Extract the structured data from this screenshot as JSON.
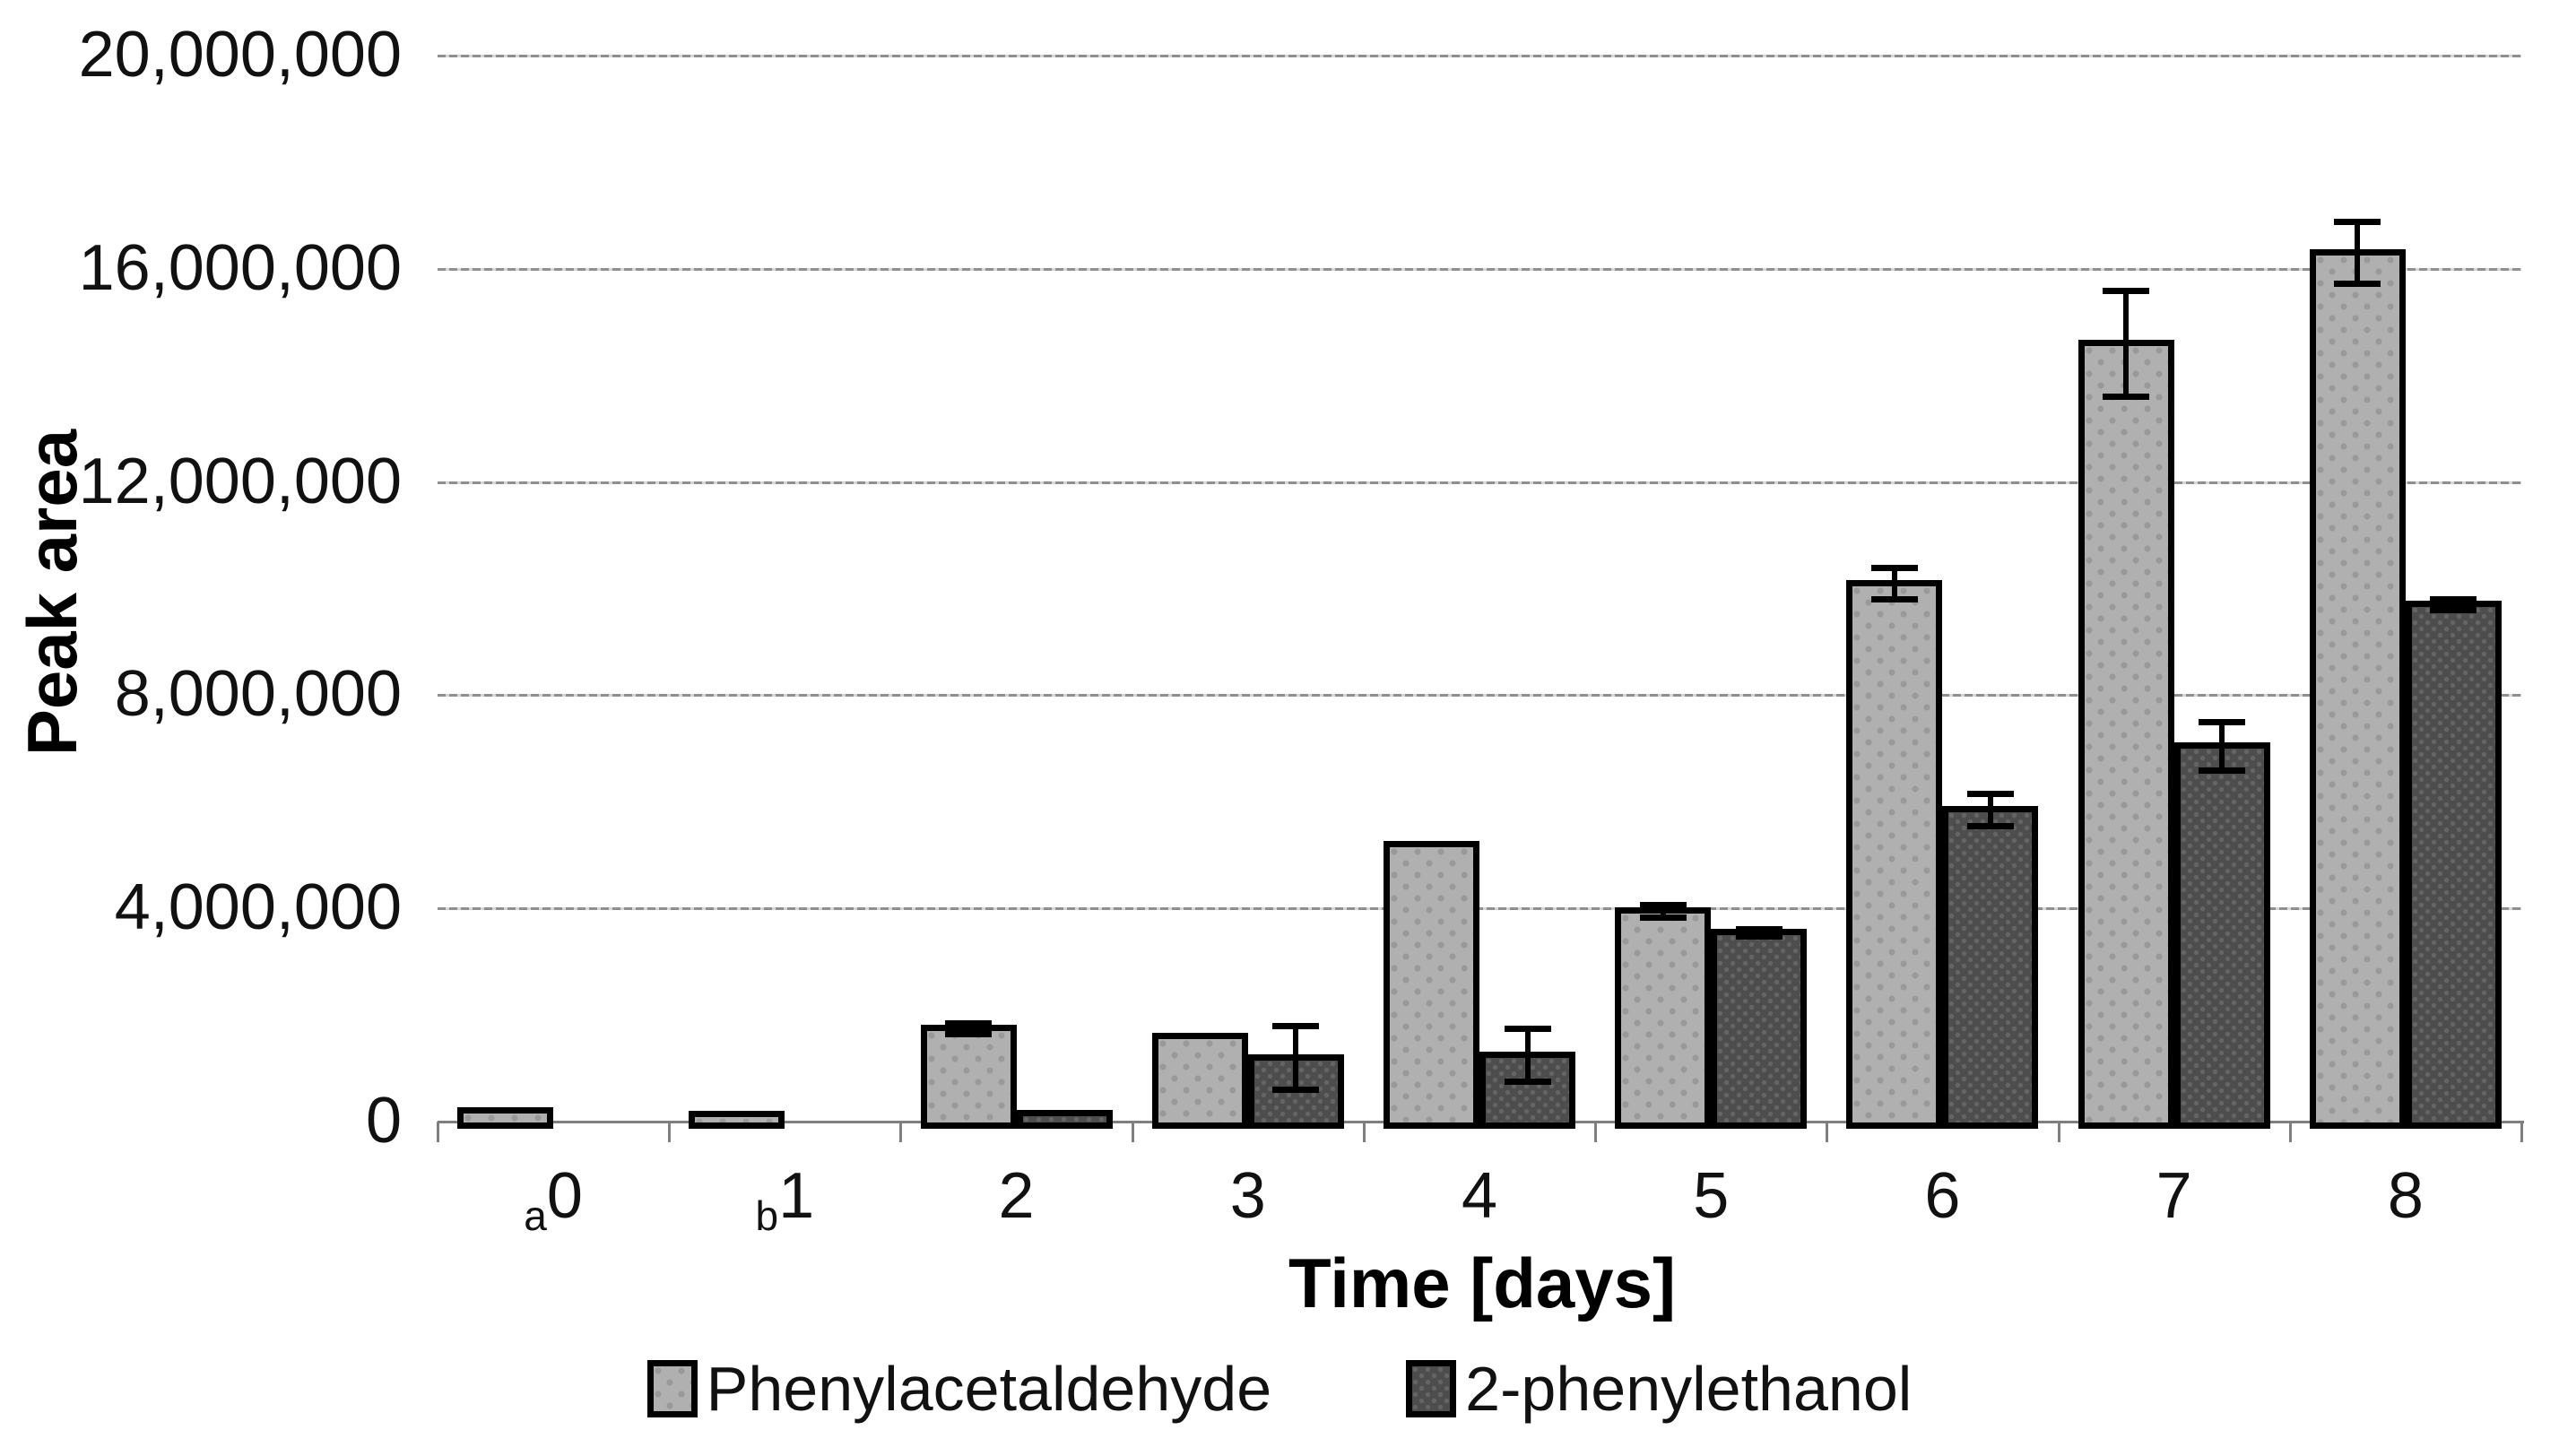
{
  "chart_data": {
    "type": "bar",
    "title": "",
    "ylabel": "Peak area",
    "xlabel": "Time [days]",
    "ylim": [
      0,
      20000000
    ],
    "ytick_step": 4000000,
    "ytick_labels": [
      "20,000,000",
      "16,000,000",
      "12,000,000",
      "8,000,000",
      "4,000,000",
      "0"
    ],
    "categories": [
      {
        "sub": "a",
        "label": "0"
      },
      {
        "sub": "b",
        "label": "1"
      },
      {
        "sub": "",
        "label": "2"
      },
      {
        "sub": "",
        "label": "3"
      },
      {
        "sub": "",
        "label": "4"
      },
      {
        "sub": "",
        "label": "5"
      },
      {
        "sub": "",
        "label": "6"
      },
      {
        "sub": "",
        "label": "7"
      },
      {
        "sub": "",
        "label": "8"
      }
    ],
    "series": [
      {
        "name": "Phenylacetaldehyde",
        "swatch": "light",
        "values": [
          200000,
          130000,
          1750000,
          1600000,
          5200000,
          3950000,
          10100000,
          14600000,
          16300000
        ],
        "errors": [
          null,
          null,
          100000,
          null,
          null,
          120000,
          300000,
          1000000,
          580000
        ]
      },
      {
        "name": "2-phenylethanol",
        "swatch": "dark",
        "values": [
          null,
          null,
          150000,
          1200000,
          1250000,
          3550000,
          5850000,
          7050000,
          9700000
        ],
        "errors": [
          null,
          null,
          null,
          600000,
          500000,
          60000,
          300000,
          450000,
          100000
        ]
      }
    ],
    "legend_position": "bottom",
    "grid": "horizontal-dashed",
    "colors": {
      "light_fill": "#b0b0b0",
      "light_dot": "#999999",
      "dark_fill": "#4d4d4d",
      "dark_dot": "#656565",
      "bar_border": "#000000",
      "gridline": "#8f8f8f",
      "axis": "#7f7f7f",
      "text": "#111111"
    }
  }
}
